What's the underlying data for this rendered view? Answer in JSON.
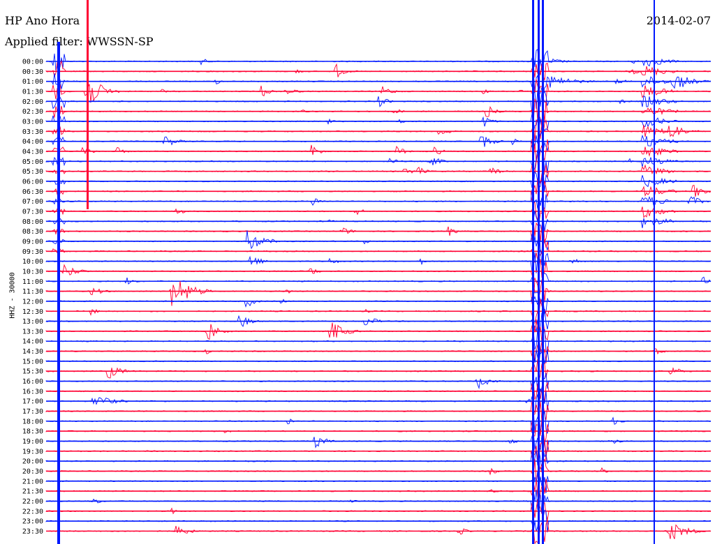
{
  "header": {
    "station": "HP Ano Hora",
    "filter": "Applied filter: WWSSN-SP",
    "date": "2014-02-07"
  },
  "colors": {
    "blue": "#0018ff",
    "red": "#ff0033",
    "background": "#ffffff"
  },
  "chart_data": {
    "type": "line",
    "title": "",
    "xlabel": "",
    "ylabel": "HHZ - 30000",
    "row_labels": [
      "00:00",
      "00:30",
      "01:00",
      "01:30",
      "02:00",
      "02:30",
      "03:00",
      "03:30",
      "04:00",
      "04:30",
      "05:00",
      "05:30",
      "06:00",
      "06:30",
      "07:00",
      "07:30",
      "08:00",
      "08:30",
      "09:00",
      "09:30",
      "10:00",
      "10:30",
      "11:00",
      "11:30",
      "12:00",
      "12:30",
      "13:00",
      "13:30",
      "14:00",
      "14:30",
      "15:00",
      "15:30",
      "16:00",
      "16:30",
      "17:00",
      "17:30",
      "18:00",
      "18:30",
      "19:00",
      "19:30",
      "20:00",
      "20:30",
      "21:00",
      "21:30",
      "22:00",
      "22:30",
      "23:00",
      "23:30"
    ],
    "row_colors": [
      "blue",
      "red",
      "blue",
      "red",
      "blue",
      "red",
      "blue",
      "red",
      "blue",
      "red",
      "blue",
      "red",
      "blue",
      "red",
      "blue",
      "red",
      "blue",
      "red",
      "blue",
      "red",
      "blue",
      "red",
      "blue",
      "red",
      "blue",
      "red",
      "blue",
      "red",
      "blue",
      "red",
      "blue",
      "red",
      "blue",
      "red",
      "blue",
      "red",
      "blue",
      "red",
      "blue",
      "red",
      "blue",
      "red",
      "blue",
      "red",
      "blue",
      "red",
      "blue",
      "red"
    ],
    "minutes_per_row": 30,
    "grid": false,
    "legend": "none"
  }
}
